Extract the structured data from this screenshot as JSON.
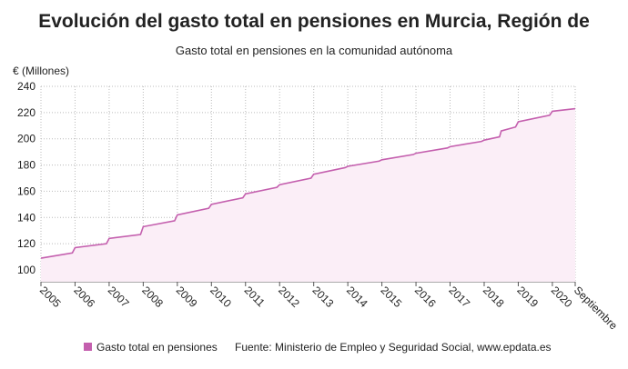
{
  "chart_data": {
    "type": "line",
    "title": "Evolución del gasto total en pensiones en Murcia, Región de",
    "subtitle": "Gasto total en pensiones en la comunidad autónoma",
    "y_label": "€ (Millones)",
    "source": "Fuente: Ministerio de Empleo y Seguridad Social, www.epdata.es",
    "x": [
      2005,
      2005.92,
      2006,
      2006.92,
      2007,
      2007.92,
      2008,
      2008.92,
      2009,
      2009.92,
      2010,
      2010.92,
      2011,
      2011.92,
      2012,
      2012.92,
      2013,
      2013.92,
      2014,
      2014.92,
      2015,
      2015.92,
      2016,
      2016.92,
      2017,
      2017.92,
      2018,
      2018.45,
      2018.5,
      2018.92,
      2019,
      2019.92,
      2020,
      2020.67
    ],
    "series": [
      {
        "name": "Gasto total en pensiones",
        "color": "#c45fae",
        "fill": "#fbeef7",
        "values": [
          109,
          113,
          117,
          120,
          124,
          127,
          133,
          137.5,
          142,
          147,
          150,
          155,
          158,
          163,
          165,
          170,
          173,
          178,
          179,
          183,
          184,
          188,
          189,
          193,
          194,
          198,
          199,
          201.5,
          206,
          209,
          213,
          218,
          221,
          223
        ]
      }
    ],
    "xlim": [
      2005,
      2020.67
    ],
    "xticks": [
      2005,
      2006,
      2007,
      2008,
      2009,
      2010,
      2011,
      2012,
      2013,
      2014,
      2015,
      2016,
      2017,
      2018,
      2019,
      2020,
      {
        "value": 2020.67,
        "label": "Septiembre"
      }
    ],
    "ylim": [
      91,
      240
    ],
    "yticks": [
      100,
      120,
      140,
      160,
      180,
      200,
      220,
      240
    ],
    "grid": true
  }
}
